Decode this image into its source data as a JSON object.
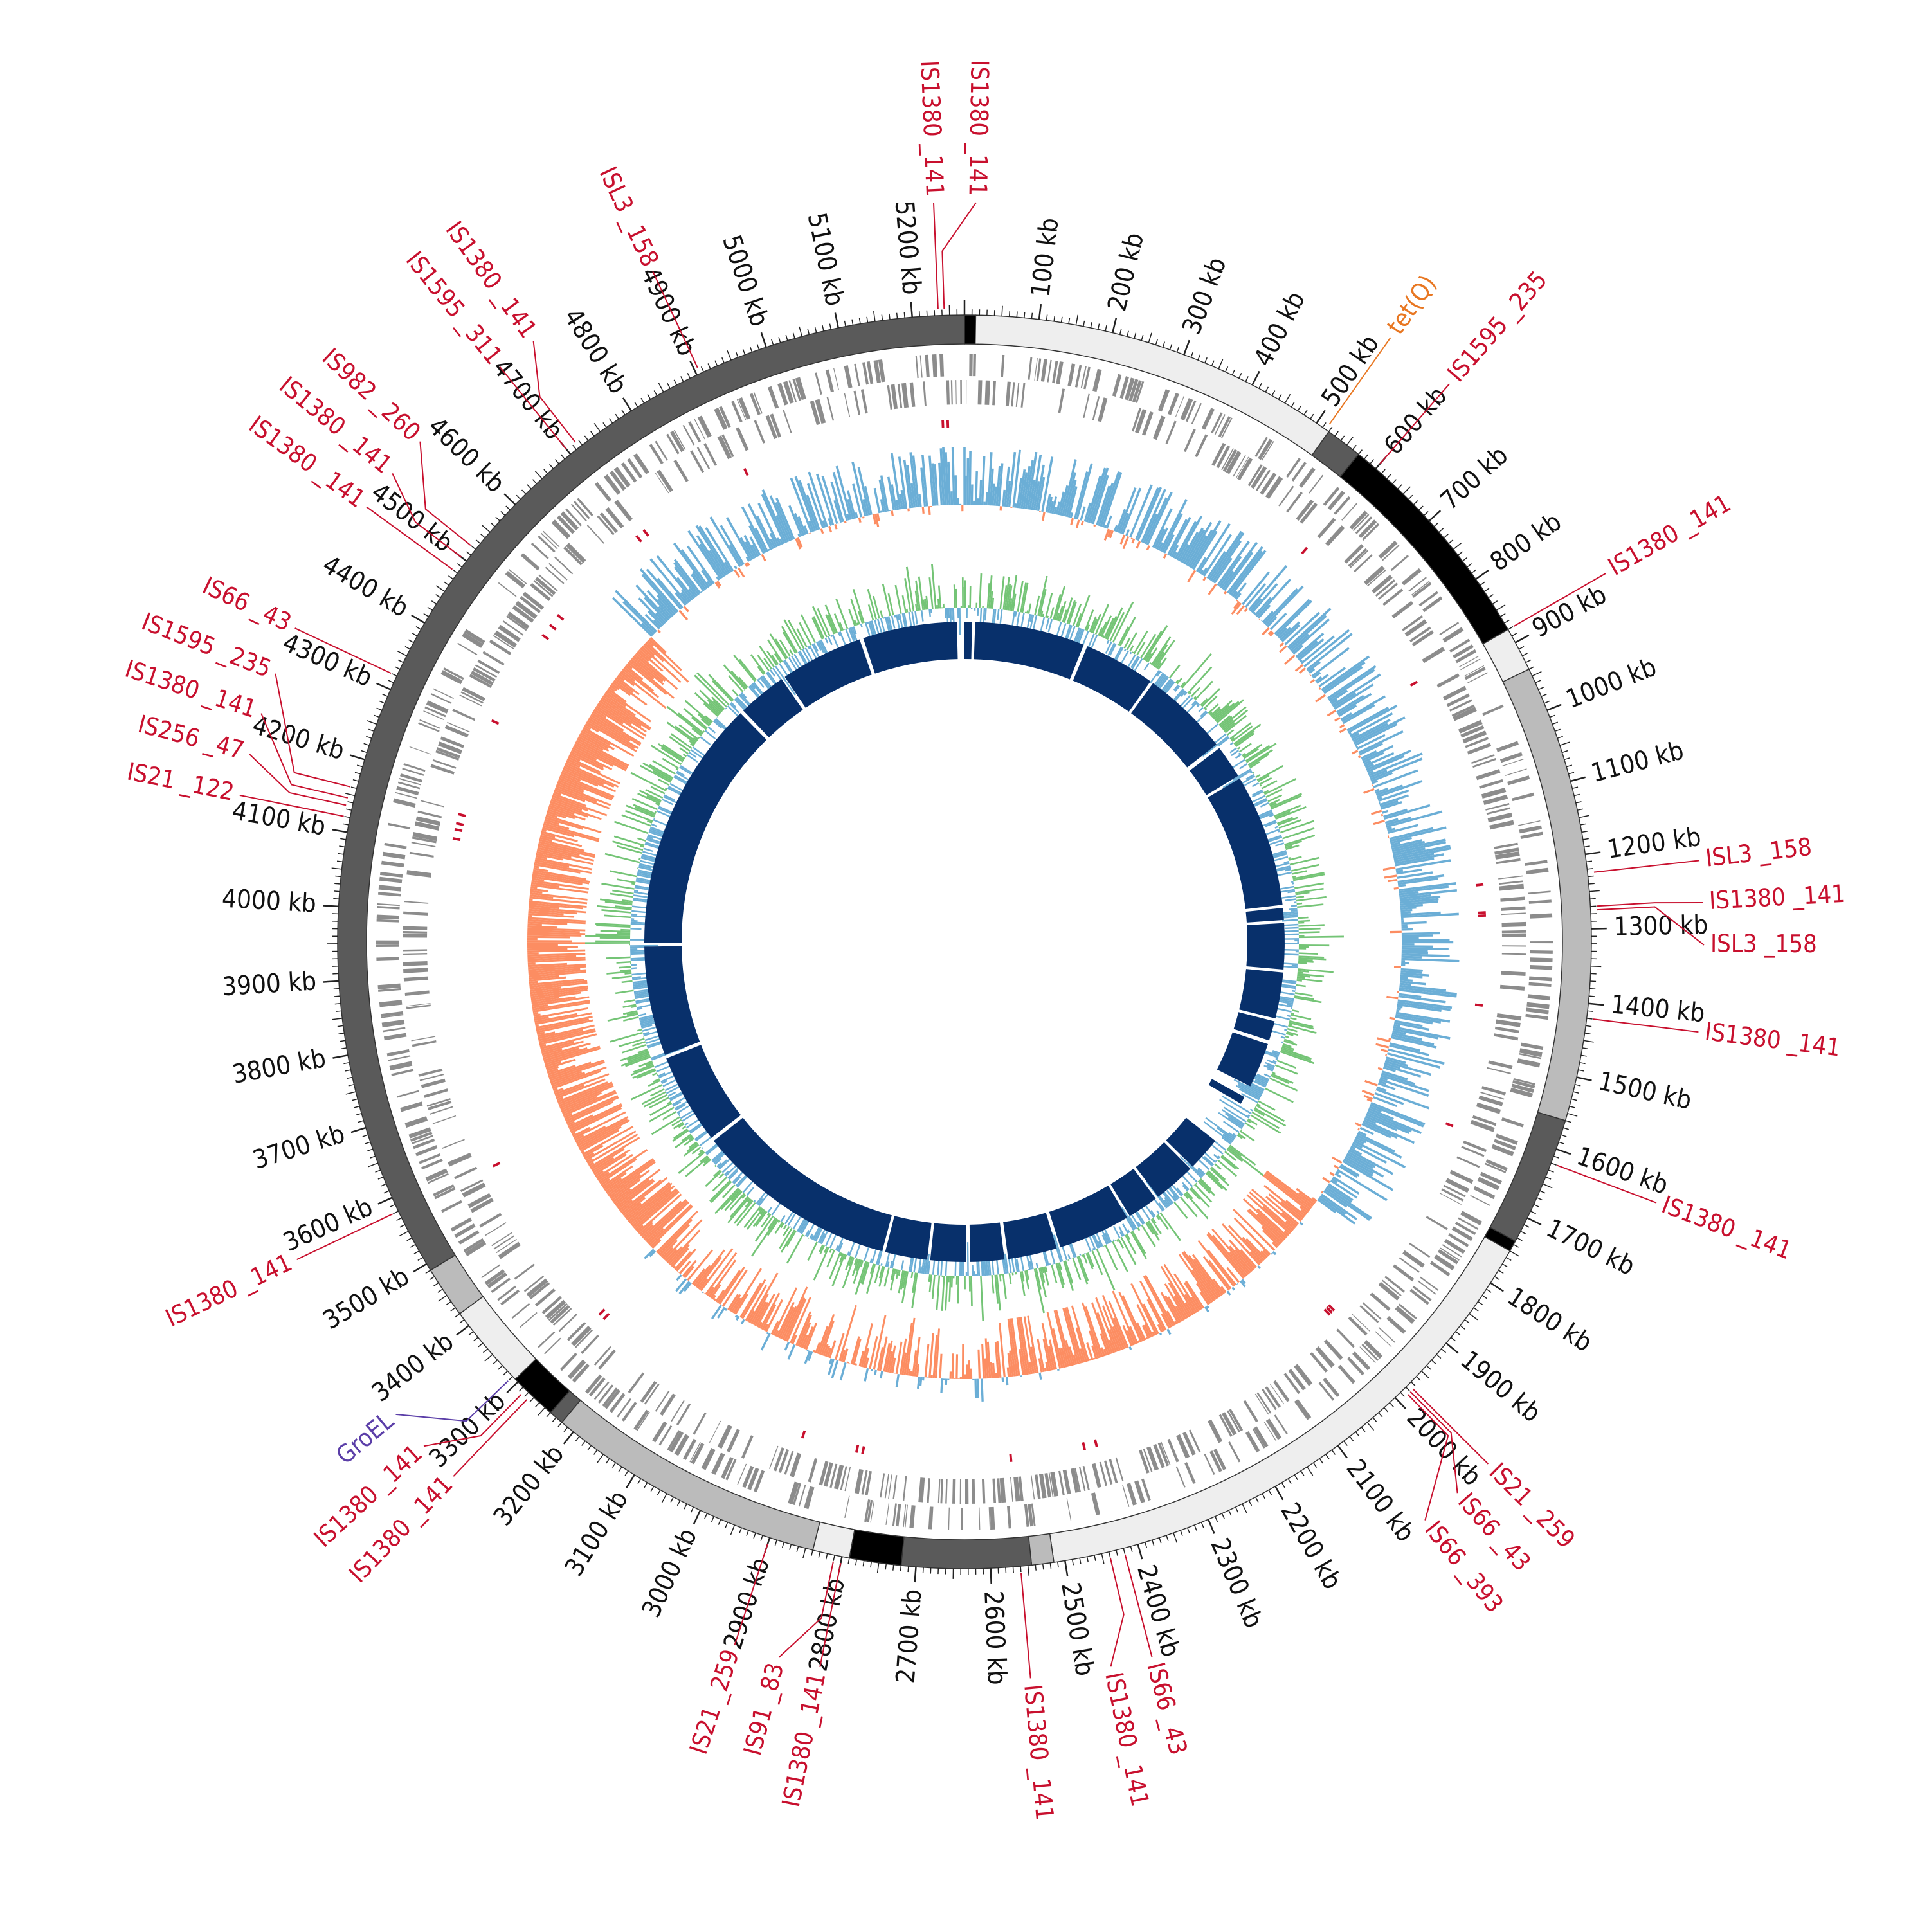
{
  "genome": {
    "total_kb": 5270,
    "tick_labels": [
      "100 kb",
      "200 kb",
      "300 kb",
      "400 kb",
      "500 kb",
      "600 kb",
      "700 kb",
      "800 kb",
      "900 kb",
      "1000 kb",
      "1100 kb",
      "1200 kb",
      "1300 kb",
      "1400 kb",
      "1500 kb",
      "1600 kb",
      "1700 kb",
      "1800 kb",
      "1900 kb",
      "2000 kb",
      "2100 kb",
      "2200 kb",
      "2300 kb",
      "2400 kb",
      "2500 kb",
      "2600 kb",
      "2700 kb",
      "2800 kb",
      "2900 kb",
      "3000 kb",
      "3100 kb",
      "3200 kb",
      "3300 kb",
      "3400 kb",
      "3500 kb",
      "3600 kb",
      "3700 kb",
      "3800 kb",
      "3900 kb",
      "4000 kb",
      "4100 kb",
      "4200 kb",
      "4300 kb",
      "4400 kb",
      "4500 kb",
      "4600 kb",
      "4700 kb",
      "4800 kb",
      "4900 kb",
      "5000 kb",
      "5100 kb",
      "5200 kb"
    ]
  },
  "segments": [
    {
      "start": 0,
      "end": 15,
      "color": "#000000"
    },
    {
      "start": 15,
      "end": 520,
      "color": "#eeeeee"
    },
    {
      "start": 520,
      "end": 570,
      "color": "#5a5a5a"
    },
    {
      "start": 570,
      "end": 880,
      "color": "#000000"
    },
    {
      "start": 880,
      "end": 940,
      "color": "#eeeeee"
    },
    {
      "start": 940,
      "end": 1560,
      "color": "#bbbbbb"
    },
    {
      "start": 1560,
      "end": 1735,
      "color": "#5a5a5a"
    },
    {
      "start": 1735,
      "end": 1750,
      "color": "#000000"
    },
    {
      "start": 1750,
      "end": 2515,
      "color": "#eeeeee"
    },
    {
      "start": 2515,
      "end": 2545,
      "color": "#bbbbbb"
    },
    {
      "start": 2545,
      "end": 2720,
      "color": "#5a5a5a"
    },
    {
      "start": 2720,
      "end": 2790,
      "color": "#000000"
    },
    {
      "start": 2790,
      "end": 2840,
      "color": "#eeeeee"
    },
    {
      "start": 2840,
      "end": 3220,
      "color": "#bbbbbb"
    },
    {
      "start": 3220,
      "end": 3240,
      "color": "#5a5a5a"
    },
    {
      "start": 3240,
      "end": 3305,
      "color": "#000000"
    },
    {
      "start": 3305,
      "end": 3420,
      "color": "#eeeeee"
    },
    {
      "start": 3420,
      "end": 3490,
      "color": "#bbbbbb"
    },
    {
      "start": 3490,
      "end": 5270,
      "color": "#5a5a5a"
    }
  ],
  "features": [
    {
      "label": "IS1380 _141",
      "pos": 5235,
      "color": "#c8102e"
    },
    {
      "label": "IS1380 _141",
      "pos": 5243,
      "color": "#c8102e"
    },
    {
      "label": "ISL3 _158",
      "pos": 4905,
      "color": "#c8102e"
    },
    {
      "label": "IS1380 _141",
      "pos": 4715,
      "color": "#c8102e"
    },
    {
      "label": "IS1595 _311",
      "pos": 4700,
      "color": "#c8102e"
    },
    {
      "label": "IS982 _260",
      "pos": 4520,
      "color": "#c8102e"
    },
    {
      "label": "IS1380 _141",
      "pos": 4500,
      "color": "#c8102e"
    },
    {
      "label": "IS1380 _141",
      "pos": 4480,
      "color": "#c8102e"
    },
    {
      "label": "IS66 _43",
      "pos": 4320,
      "color": "#c8102e"
    },
    {
      "label": "IS1595 _235",
      "pos": 4160,
      "color": "#c8102e"
    },
    {
      "label": "IS1380 _141",
      "pos": 4145,
      "color": "#c8102e"
    },
    {
      "label": "IS256 _47",
      "pos": 4135,
      "color": "#c8102e"
    },
    {
      "label": "IS21 _122",
      "pos": 4120,
      "color": "#c8102e"
    },
    {
      "label": "tet(Q)",
      "pos": 515,
      "color": "#e87722"
    },
    {
      "label": "IS1595 _235",
      "pos": 600,
      "color": "#c8102e"
    },
    {
      "label": "IS1380 _141",
      "pos": 880,
      "color": "#c8102e"
    },
    {
      "label": "ISL3 _158",
      "pos": 1225,
      "color": "#c8102e"
    },
    {
      "label": "IS1380 _141",
      "pos": 1270,
      "color": "#c8102e"
    },
    {
      "label": "ISL3 _158",
      "pos": 1275,
      "color": "#c8102e"
    },
    {
      "label": "IS1380 _141",
      "pos": 1420,
      "color": "#c8102e"
    },
    {
      "label": "IS1380 _141",
      "pos": 1620,
      "color": "#c8102e"
    },
    {
      "label": "IS21 _259",
      "pos": 1975,
      "color": "#c8102e"
    },
    {
      "label": "IS66 _43",
      "pos": 1980,
      "color": "#c8102e"
    },
    {
      "label": "IS66 _393",
      "pos": 1985,
      "color": "#c8102e"
    },
    {
      "label": "IS66 _43",
      "pos": 2420,
      "color": "#c8102e"
    },
    {
      "label": "IS1380 _141",
      "pos": 2440,
      "color": "#c8102e"
    },
    {
      "label": "IS1380 _141",
      "pos": 2560,
      "color": "#c8102e"
    },
    {
      "label": "IS1380 _141",
      "pos": 2800,
      "color": "#c8102e"
    },
    {
      "label": "IS91 _83",
      "pos": 2810,
      "color": "#c8102e"
    },
    {
      "label": "IS21 _259",
      "pos": 2900,
      "color": "#c8102e"
    },
    {
      "label": "IS1380 _141",
      "pos": 3275,
      "color": "#c8102e"
    },
    {
      "label": "IS1380 _141",
      "pos": 3285,
      "color": "#c8102e"
    },
    {
      "label": "GroEL",
      "pos": 3310,
      "color": "#5b3ea8"
    },
    {
      "label": "IS1380 _141",
      "pos": 3580,
      "color": "#c8102e"
    }
  ],
  "tracks": {
    "cds_color": "#8c8c8c",
    "gc_skew_pos_color": "#6baed6",
    "gc_skew_neg_color": "#fc8d62",
    "gc_content_pos_color": "#74c476",
    "gc_content_neg_color": "#6baed6",
    "contig_color": "#08306b"
  },
  "contigs": [
    {
      "start": 0,
      "end": 20
    },
    {
      "start": 28,
      "end": 320
    },
    {
      "start": 330,
      "end": 520
    },
    {
      "start": 528,
      "end": 760
    },
    {
      "start": 772,
      "end": 860
    },
    {
      "start": 868,
      "end": 1220
    },
    {
      "start": 1228,
      "end": 1260
    },
    {
      "start": 1268,
      "end": 1390
    },
    {
      "start": 1398,
      "end": 1520
    },
    {
      "start": 1528,
      "end": 1580
    },
    {
      "start": 1590,
      "end": 1710
    },
    {
      "start": 1742,
      "end": 1762
    },
    {
      "start": 1880,
      "end": 1970
    },
    {
      "start": 1978,
      "end": 2090
    },
    {
      "start": 2098,
      "end": 2180
    },
    {
      "start": 2188,
      "end": 2380
    },
    {
      "start": 2390,
      "end": 2520
    },
    {
      "start": 2530,
      "end": 2620
    },
    {
      "start": 2630,
      "end": 2725
    },
    {
      "start": 2733,
      "end": 2845
    },
    {
      "start": 2853,
      "end": 3390
    },
    {
      "start": 3400,
      "end": 3640
    },
    {
      "start": 3650,
      "end": 3940
    },
    {
      "start": 3950,
      "end": 4620
    },
    {
      "start": 4630,
      "end": 4760
    },
    {
      "start": 4770,
      "end": 4990
    },
    {
      "start": 5000,
      "end": 5250
    }
  ]
}
